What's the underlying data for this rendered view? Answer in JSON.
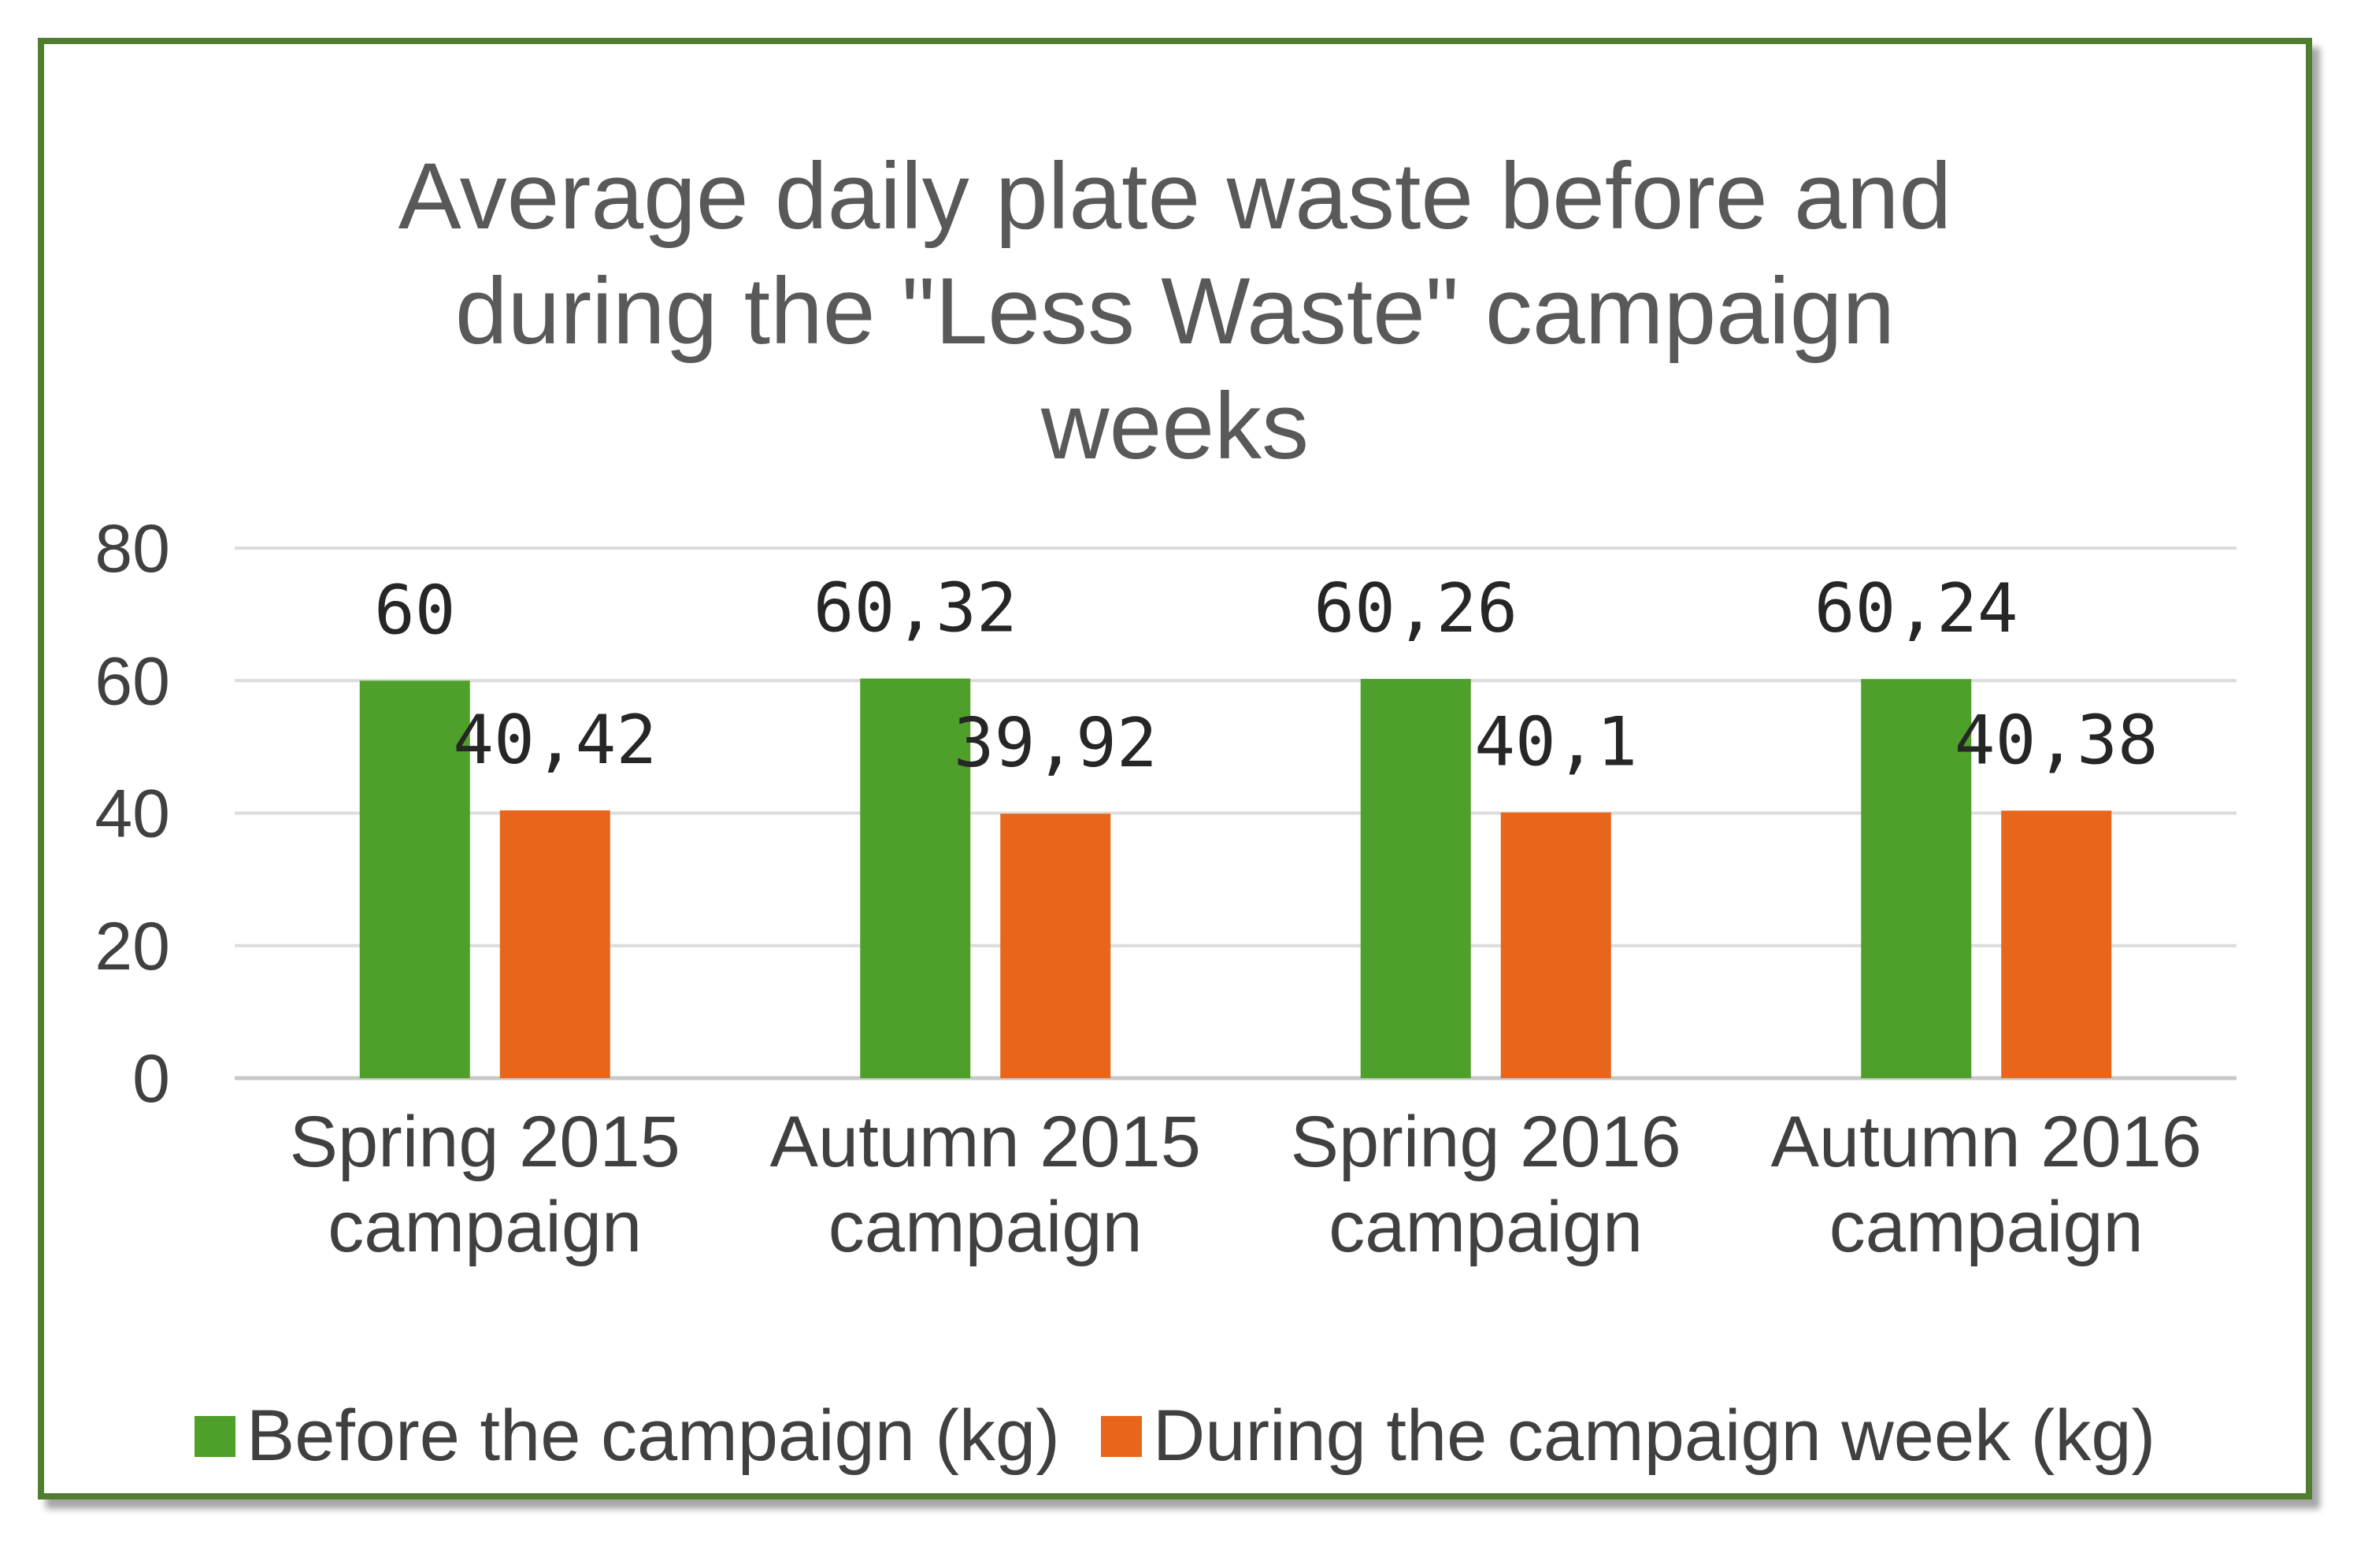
{
  "chart_data": {
    "type": "bar",
    "title_lines": [
      "Average daily plate waste before and",
      "during the \"Less Waste\" campaign",
      "weeks"
    ],
    "categories": [
      [
        "Spring 2015",
        "campaign"
      ],
      [
        "Autumn 2015",
        "campaign"
      ],
      [
        "Spring 2016",
        "campaign"
      ],
      [
        "Autumn 2016",
        "campaign"
      ]
    ],
    "series": [
      {
        "name": "Before the campaign (kg)",
        "color": "#4ea02a",
        "values": [
          60,
          60.32,
          60.26,
          60.24
        ],
        "labels": [
          "60",
          "60,32",
          "60,26",
          "60,24"
        ]
      },
      {
        "name": "During the campaign week (kg)",
        "color": "#e8661b",
        "values": [
          40.42,
          39.92,
          40.1,
          40.38
        ],
        "labels": [
          "40,42",
          "39,92",
          "40,1",
          "40,38"
        ]
      }
    ],
    "y_ticks": [
      "0",
      "20",
      "40",
      "60",
      "80"
    ],
    "ylim": [
      0,
      80
    ],
    "grid": true,
    "legend_position": "bottom"
  }
}
